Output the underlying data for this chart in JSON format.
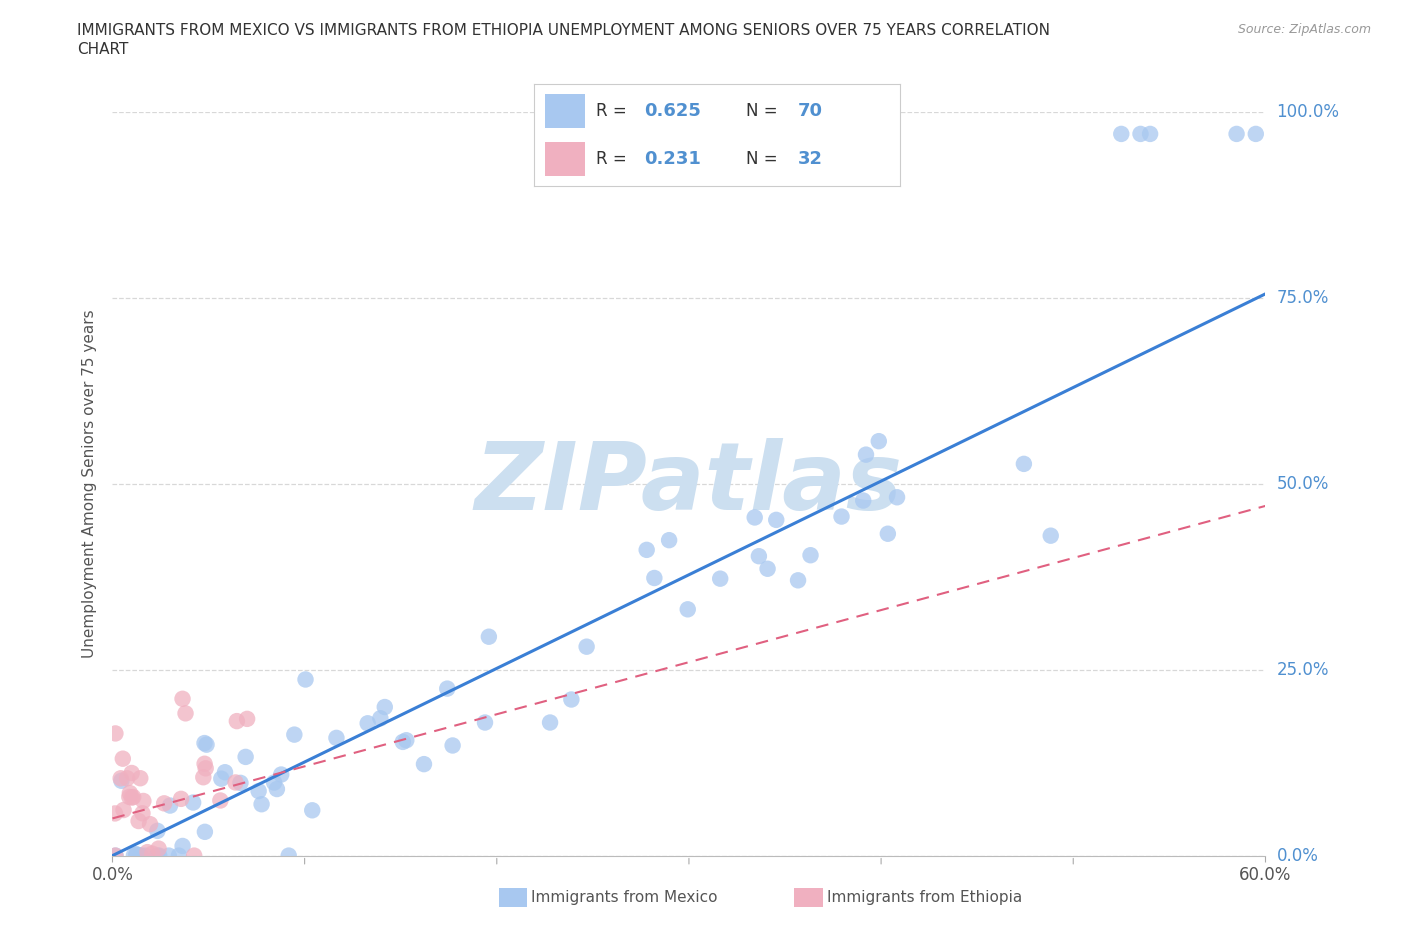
{
  "title_line1": "IMMIGRANTS FROM MEXICO VS IMMIGRANTS FROM ETHIOPIA UNEMPLOYMENT AMONG SENIORS OVER 75 YEARS CORRELATION",
  "title_line2": "CHART",
  "source": "Source: ZipAtlas.com",
  "ylabel": "Unemployment Among Seniors over 75 years",
  "xlim": [
    0.0,
    0.6
  ],
  "ylim": [
    0.0,
    1.0
  ],
  "ytick_vals": [
    0.0,
    0.25,
    0.5,
    0.75,
    1.0
  ],
  "ytick_labels": [
    "0.0%",
    "25.0%",
    "50.0%",
    "75.0%",
    "100.0%"
  ],
  "xtick_vals": [
    0.0,
    0.6
  ],
  "xtick_labels": [
    "0.0%",
    "60.0%"
  ],
  "mexico_color": "#a8c8f0",
  "ethiopia_color": "#f0b0c0",
  "mexico_line_color": "#3a7fd5",
  "ethiopia_line_color": "#e06080",
  "mexico_R": "0.625",
  "mexico_N": "70",
  "ethiopia_R": "0.231",
  "ethiopia_N": "32",
  "watermark_text": "ZIPatlas",
  "watermark_color": "#ccdff0",
  "label_color": "#5090d0",
  "background_color": "#ffffff",
  "grid_color": "#d8d8d8",
  "title_color": "#333333",
  "legend_label_mexico": "Immigrants from Mexico",
  "legend_label_ethiopia": "Immigrants from Ethiopia",
  "mexico_line_x": [
    0.0,
    0.6
  ],
  "mexico_line_y": [
    0.0,
    0.755
  ],
  "ethiopia_line_x": [
    0.0,
    0.6
  ],
  "ethiopia_line_y": [
    0.05,
    0.47
  ]
}
